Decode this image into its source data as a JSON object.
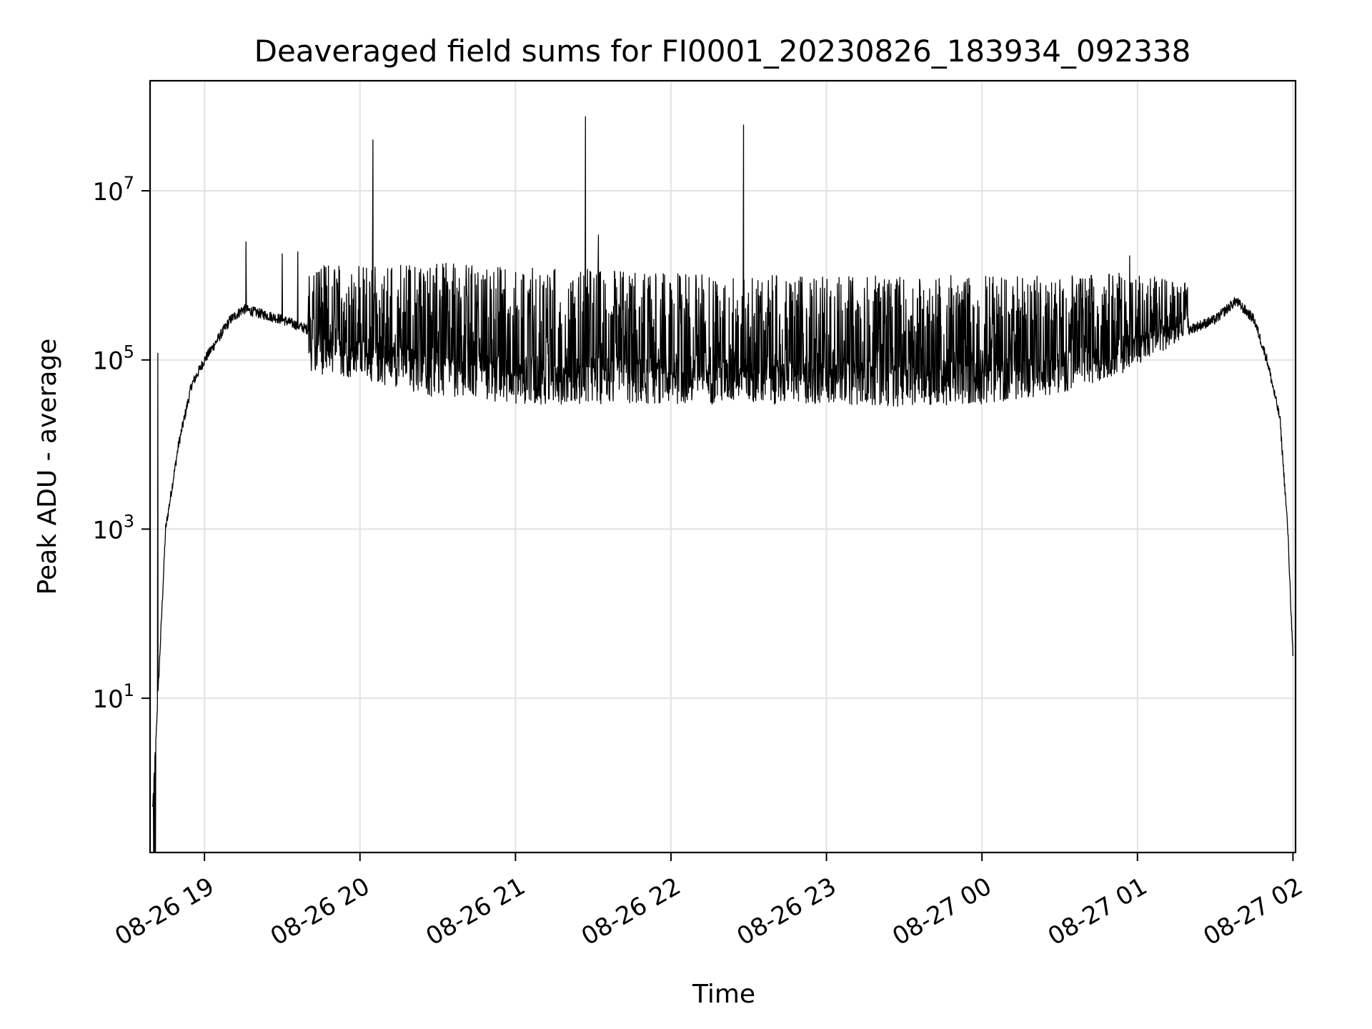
{
  "chart_data": {
    "type": "line",
    "title": "Deaveraged field sums for FI0001_20230826_183934_092338",
    "xlabel": "Time",
    "ylabel": "Peak ADU - average",
    "y_scale": "log",
    "ylim": [
      0.15,
      200000000
    ],
    "xlim": [
      "2023-08-26 18:39",
      "2023-08-27 02:01"
    ],
    "grid": true,
    "line_color": "#000000",
    "x_ticks": [
      "08-26 19",
      "08-26 20",
      "08-26 21",
      "08-26 22",
      "08-26 23",
      "08-27 00",
      "08-27 01",
      "08-27 02"
    ],
    "x_tick_times": [
      "2023-08-26 19:00",
      "2023-08-26 20:00",
      "2023-08-26 21:00",
      "2023-08-26 22:00",
      "2023-08-26 23:00",
      "2023-08-27 00:00",
      "2023-08-27 01:00",
      "2023-08-27 02:00"
    ],
    "y_ticks": [
      {
        "base": "10",
        "exp": "1",
        "value": 10
      },
      {
        "base": "10",
        "exp": "3",
        "value": 1000
      },
      {
        "base": "10",
        "exp": "5",
        "value": 100000
      },
      {
        "base": "10",
        "exp": "7",
        "value": 10000000
      }
    ],
    "baseline": {
      "x": [
        "2023-08-26 18:40",
        "2023-08-26 18:42",
        "2023-08-26 18:45",
        "2023-08-26 18:50",
        "2023-08-26 18:55",
        "2023-08-26 19:00",
        "2023-08-26 19:10",
        "2023-08-26 19:15",
        "2023-08-26 19:30",
        "2023-08-26 19:45",
        "2023-08-26 20:00",
        "2023-08-26 20:15",
        "2023-08-26 20:30",
        "2023-08-26 20:45",
        "2023-08-26 21:00",
        "2023-08-26 21:30",
        "2023-08-26 22:00",
        "2023-08-26 22:30",
        "2023-08-26 23:00",
        "2023-08-26 23:30",
        "2023-08-27 00:00",
        "2023-08-27 00:30",
        "2023-08-27 01:00",
        "2023-08-27 01:15",
        "2023-08-27 01:30",
        "2023-08-27 01:38",
        "2023-08-27 01:45",
        "2023-08-27 01:50",
        "2023-08-27 01:55",
        "2023-08-27 01:58",
        "2023-08-27 02:00"
      ],
      "y": [
        0.5,
        10,
        1000,
        10000,
        50000,
        100000,
        300000,
        400000,
        300000,
        200000,
        120000,
        100000,
        70000,
        50000,
        40000,
        40000,
        45000,
        45000,
        40000,
        35000,
        40000,
        50000,
        100000,
        200000,
        300000,
        500000,
        300000,
        100000,
        20000,
        1000,
        30
      ]
    },
    "variability_envelope": {
      "x": [
        "2023-08-26 19:40",
        "2023-08-26 20:00",
        "2023-08-26 20:30",
        "2023-08-26 21:00",
        "2023-08-26 21:30",
        "2023-08-26 22:00",
        "2023-08-26 22:30",
        "2023-08-26 23:00",
        "2023-08-26 23:30",
        "2023-08-27 00:00",
        "2023-08-27 00:30",
        "2023-08-27 01:00",
        "2023-08-27 01:20"
      ],
      "upper": [
        1300000,
        1400000,
        1400000,
        1300000,
        1200000,
        1100000,
        1000000,
        1000000,
        1000000,
        1000000,
        1000000,
        1100000,
        800000
      ],
      "lower": [
        70000,
        60000,
        35000,
        30000,
        30000,
        30000,
        30000,
        30000,
        28000,
        30000,
        40000,
        80000,
        200000
      ]
    },
    "spikes": [
      {
        "x": "2023-08-26 18:42",
        "y": 120000
      },
      {
        "x": "2023-08-26 19:16",
        "y": 2500000
      },
      {
        "x": "2023-08-26 19:30",
        "y": 1800000
      },
      {
        "x": "2023-08-26 19:36",
        "y": 1900000
      },
      {
        "x": "2023-08-26 20:05",
        "y": 40000000
      },
      {
        "x": "2023-08-26 21:27",
        "y": 75000000
      },
      {
        "x": "2023-08-26 21:32",
        "y": 3000000
      },
      {
        "x": "2023-08-26 22:28",
        "y": 60000000
      },
      {
        "x": "2023-08-27 00:57",
        "y": 1700000
      }
    ]
  }
}
